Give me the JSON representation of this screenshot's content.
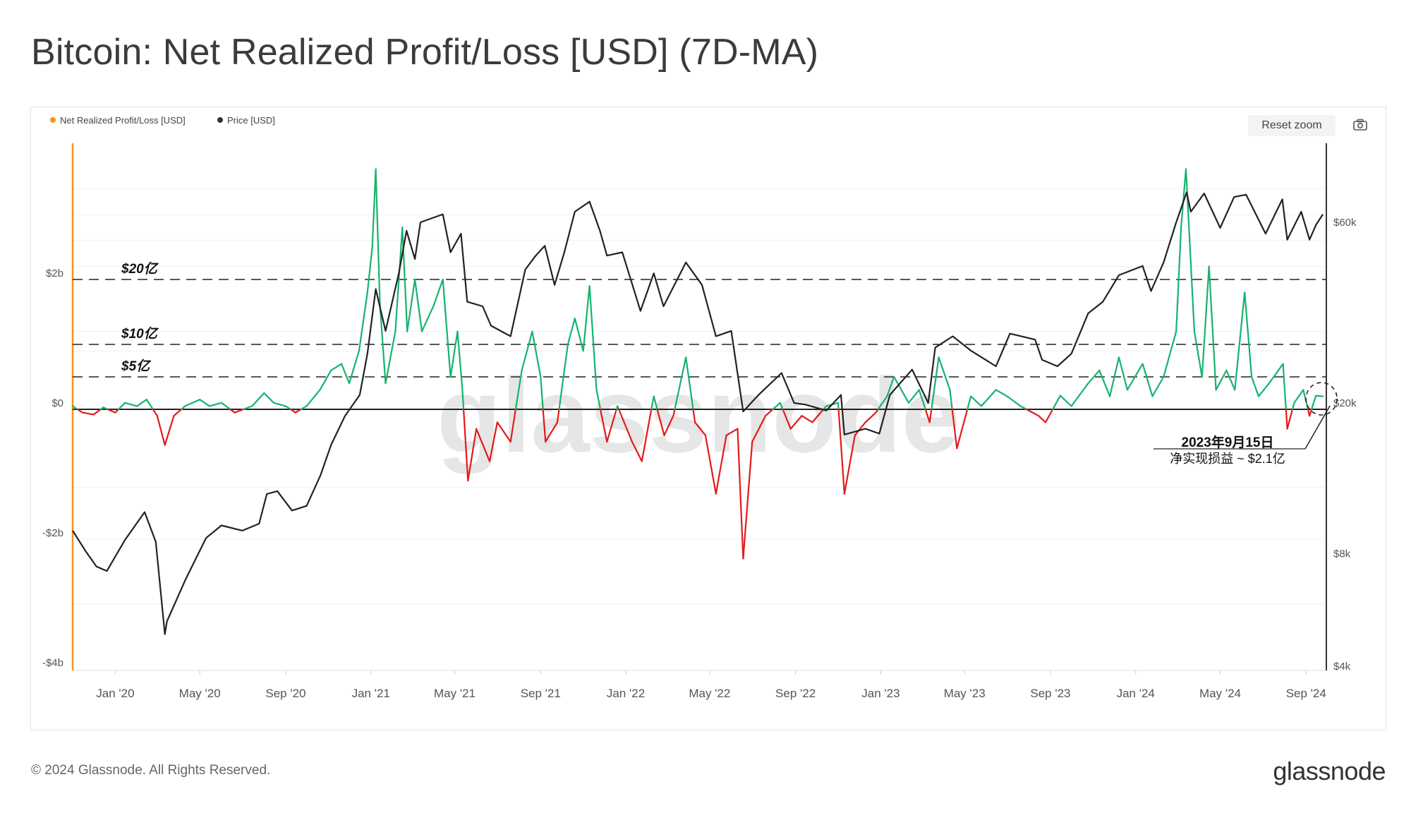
{
  "title": "Bitcoin: Net Realized Profit/Loss [USD] (7D-MA)",
  "footer": {
    "copyright": "© 2024 Glassnode. All Rights Reserved.",
    "logo": "glassnode"
  },
  "controls": {
    "reset_zoom": "Reset zoom",
    "camera_icon": "camera-icon"
  },
  "watermark": "glassnode",
  "legend": [
    {
      "label": "Net Realized Profit/Loss [USD]",
      "color": "#f7931a"
    },
    {
      "label": "Price [USD]",
      "color": "#333333"
    }
  ],
  "colors": {
    "profit": "#16b36f",
    "loss": "#e3191b",
    "price": "#222222",
    "left_axis": "#f7931a"
  },
  "annotations": {
    "lines": [
      {
        "label": "$20亿",
        "value": 2.0
      },
      {
        "label": "$10亿",
        "value": 1.0
      },
      {
        "label": "$5亿",
        "value": 0.5
      }
    ],
    "callout_date": "2023年9月15日",
    "callout_text": "净实现损益 ~ $2.1亿"
  },
  "chart_data": {
    "type": "line",
    "x_tick_labels": [
      "Jan '20",
      "May '20",
      "Sep '20",
      "Jan '21",
      "May '21",
      "Sep '21",
      "Jan '22",
      "May '22",
      "Sep '22",
      "Jan '23",
      "May '23",
      "Sep '23",
      "Jan '24",
      "May '24",
      "Sep '24"
    ],
    "x_range": [
      "2019-11-01",
      "2024-09-30"
    ],
    "y_left": {
      "label": "Net Realized Profit/Loss [USD]",
      "ticks": [
        "$2b",
        "$0",
        "-$2b",
        "-$4b"
      ],
      "tick_values": [
        2,
        0,
        -2,
        -4
      ],
      "range": [
        -4,
        3.2
      ],
      "unit": "billion USD"
    },
    "y_right": {
      "label": "Price [USD]",
      "scale": "log",
      "ticks": [
        "$60k",
        "$20k",
        "$8k",
        "$4k"
      ],
      "tick_values": [
        60000,
        20000,
        8000,
        4000
      ],
      "range": [
        4000,
        110000
      ]
    },
    "grid": true,
    "series": [
      {
        "name": "Net Realized Profit/Loss [USD]",
        "axis": "left",
        "unit": "billion USD",
        "points": [
          [
            "2019-11-01",
            0.05
          ],
          [
            "2019-11-15",
            -0.05
          ],
          [
            "2019-12-01",
            -0.08
          ],
          [
            "2019-12-15",
            0.03
          ],
          [
            "2020-01-01",
            -0.05
          ],
          [
            "2020-01-15",
            0.1
          ],
          [
            "2020-02-01",
            0.05
          ],
          [
            "2020-02-15",
            0.15
          ],
          [
            "2020-03-01",
            -0.1
          ],
          [
            "2020-03-12",
            -0.55
          ],
          [
            "2020-03-25",
            -0.1
          ],
          [
            "2020-04-10",
            0.05
          ],
          [
            "2020-05-01",
            0.15
          ],
          [
            "2020-05-15",
            0.05
          ],
          [
            "2020-06-01",
            0.1
          ],
          [
            "2020-06-20",
            -0.05
          ],
          [
            "2020-07-15",
            0.05
          ],
          [
            "2020-08-01",
            0.25
          ],
          [
            "2020-08-15",
            0.1
          ],
          [
            "2020-09-01",
            0.05
          ],
          [
            "2020-09-15",
            -0.05
          ],
          [
            "2020-10-01",
            0.05
          ],
          [
            "2020-10-20",
            0.3
          ],
          [
            "2020-11-05",
            0.6
          ],
          [
            "2020-11-20",
            0.7
          ],
          [
            "2020-12-01",
            0.4
          ],
          [
            "2020-12-15",
            0.9
          ],
          [
            "2020-12-27",
            1.8
          ],
          [
            "2021-01-03",
            2.5
          ],
          [
            "2021-01-08",
            3.7
          ],
          [
            "2021-01-14",
            1.6
          ],
          [
            "2021-01-22",
            0.4
          ],
          [
            "2021-02-05",
            1.2
          ],
          [
            "2021-02-15",
            2.8
          ],
          [
            "2021-02-22",
            1.2
          ],
          [
            "2021-03-05",
            2.0
          ],
          [
            "2021-03-15",
            1.2
          ],
          [
            "2021-04-01",
            1.6
          ],
          [
            "2021-04-14",
            2.0
          ],
          [
            "2021-04-25",
            0.5
          ],
          [
            "2021-05-05",
            1.2
          ],
          [
            "2021-05-12",
            0.3
          ],
          [
            "2021-05-20",
            -1.1
          ],
          [
            "2021-06-01",
            -0.3
          ],
          [
            "2021-06-20",
            -0.8
          ],
          [
            "2021-07-01",
            -0.2
          ],
          [
            "2021-07-20",
            -0.5
          ],
          [
            "2021-08-05",
            0.6
          ],
          [
            "2021-08-20",
            1.2
          ],
          [
            "2021-09-01",
            0.5
          ],
          [
            "2021-09-08",
            -0.5
          ],
          [
            "2021-09-25",
            -0.2
          ],
          [
            "2021-10-10",
            1.0
          ],
          [
            "2021-10-20",
            1.4
          ],
          [
            "2021-11-01",
            0.9
          ],
          [
            "2021-11-10",
            1.9
          ],
          [
            "2021-11-20",
            0.3
          ],
          [
            "2021-12-05",
            -0.5
          ],
          [
            "2021-12-20",
            0.05
          ],
          [
            "2022-01-10",
            -0.5
          ],
          [
            "2022-01-24",
            -0.8
          ],
          [
            "2022-02-10",
            0.2
          ],
          [
            "2022-02-25",
            -0.4
          ],
          [
            "2022-03-10",
            -0.1
          ],
          [
            "2022-03-28",
            0.8
          ],
          [
            "2022-04-10",
            -0.2
          ],
          [
            "2022-04-25",
            -0.4
          ],
          [
            "2022-05-10",
            -1.3
          ],
          [
            "2022-05-25",
            -0.4
          ],
          [
            "2022-06-10",
            -0.3
          ],
          [
            "2022-06-18",
            -2.3
          ],
          [
            "2022-07-01",
            -0.5
          ],
          [
            "2022-07-20",
            -0.1
          ],
          [
            "2022-08-10",
            0.1
          ],
          [
            "2022-08-25",
            -0.3
          ],
          [
            "2022-09-10",
            -0.1
          ],
          [
            "2022-09-25",
            -0.2
          ],
          [
            "2022-10-15",
            0.05
          ],
          [
            "2022-11-01",
            0.1
          ],
          [
            "2022-11-10",
            -1.3
          ],
          [
            "2022-11-25",
            -0.4
          ],
          [
            "2022-12-10",
            -0.2
          ],
          [
            "2022-12-25",
            -0.05
          ],
          [
            "2023-01-10",
            0.2
          ],
          [
            "2023-01-20",
            0.5
          ],
          [
            "2023-02-10",
            0.1
          ],
          [
            "2023-02-25",
            0.3
          ],
          [
            "2023-03-12",
            -0.2
          ],
          [
            "2023-03-25",
            0.8
          ],
          [
            "2023-04-10",
            0.3
          ],
          [
            "2023-04-20",
            -0.6
          ],
          [
            "2023-05-10",
            0.2
          ],
          [
            "2023-05-25",
            0.05
          ],
          [
            "2023-06-15",
            0.3
          ],
          [
            "2023-07-01",
            0.2
          ],
          [
            "2023-07-20",
            0.05
          ],
          [
            "2023-08-15",
            -0.1
          ],
          [
            "2023-08-25",
            -0.2
          ],
          [
            "2023-09-15",
            0.21
          ],
          [
            "2023-10-01",
            0.05
          ],
          [
            "2023-10-25",
            0.4
          ],
          [
            "2023-11-10",
            0.6
          ],
          [
            "2023-11-25",
            0.2
          ],
          [
            "2023-12-08",
            0.8
          ],
          [
            "2023-12-20",
            0.3
          ],
          [
            "2024-01-11",
            0.7
          ],
          [
            "2024-01-25",
            0.2
          ],
          [
            "2024-02-10",
            0.5
          ],
          [
            "2024-02-28",
            1.2
          ],
          [
            "2024-03-06",
            2.8
          ],
          [
            "2024-03-13",
            3.7
          ],
          [
            "2024-03-25",
            1.2
          ],
          [
            "2024-04-05",
            0.5
          ],
          [
            "2024-04-15",
            2.2
          ],
          [
            "2024-04-25",
            0.3
          ],
          [
            "2024-05-10",
            0.6
          ],
          [
            "2024-05-22",
            0.3
          ],
          [
            "2024-06-05",
            1.8
          ],
          [
            "2024-06-15",
            0.5
          ],
          [
            "2024-06-25",
            0.2
          ],
          [
            "2024-07-10",
            0.4
          ],
          [
            "2024-07-30",
            0.7
          ],
          [
            "2024-08-05",
            -0.3
          ],
          [
            "2024-08-15",
            0.1
          ],
          [
            "2024-08-28",
            0.3
          ],
          [
            "2024-09-06",
            -0.1
          ],
          [
            "2024-09-15",
            0.21
          ],
          [
            "2024-09-25",
            0.2
          ]
        ]
      },
      {
        "name": "Price [USD]",
        "axis": "right",
        "unit": "USD",
        "points": [
          [
            "2019-11-01",
            9200
          ],
          [
            "2019-11-20",
            8100
          ],
          [
            "2019-12-05",
            7400
          ],
          [
            "2019-12-20",
            7200
          ],
          [
            "2020-01-15",
            8700
          ],
          [
            "2020-02-12",
            10300
          ],
          [
            "2020-02-28",
            8600
          ],
          [
            "2020-03-12",
            4900
          ],
          [
            "2020-03-15",
            5300
          ],
          [
            "2020-04-10",
            6800
          ],
          [
            "2020-05-10",
            8800
          ],
          [
            "2020-06-01",
            9500
          ],
          [
            "2020-07-01",
            9200
          ],
          [
            "2020-07-25",
            9600
          ],
          [
            "2020-08-05",
            11500
          ],
          [
            "2020-08-20",
            11700
          ],
          [
            "2020-09-10",
            10400
          ],
          [
            "2020-10-01",
            10700
          ],
          [
            "2020-10-21",
            12900
          ],
          [
            "2020-11-05",
            15500
          ],
          [
            "2020-11-25",
            18500
          ],
          [
            "2020-12-16",
            21000
          ],
          [
            "2020-12-27",
            27000
          ],
          [
            "2021-01-08",
            40000
          ],
          [
            "2021-01-22",
            31000
          ],
          [
            "2021-02-10",
            44000
          ],
          [
            "2021-02-21",
            57000
          ],
          [
            "2021-03-05",
            48000
          ],
          [
            "2021-03-13",
            60000
          ],
          [
            "2021-04-14",
            63000
          ],
          [
            "2021-04-25",
            50000
          ],
          [
            "2021-05-10",
            56000
          ],
          [
            "2021-05-19",
            37000
          ],
          [
            "2021-06-10",
            36000
          ],
          [
            "2021-06-22",
            32000
          ],
          [
            "2021-07-20",
            30000
          ],
          [
            "2021-08-10",
            45000
          ],
          [
            "2021-08-25",
            49000
          ],
          [
            "2021-09-07",
            52000
          ],
          [
            "2021-09-21",
            41000
          ],
          [
            "2021-10-05",
            50000
          ],
          [
            "2021-10-20",
            64000
          ],
          [
            "2021-11-10",
            68000
          ],
          [
            "2021-11-25",
            57000
          ],
          [
            "2021-12-05",
            49000
          ],
          [
            "2021-12-27",
            50000
          ],
          [
            "2022-01-22",
            35000
          ],
          [
            "2022-02-10",
            44000
          ],
          [
            "2022-02-24",
            36000
          ],
          [
            "2022-03-28",
            47000
          ],
          [
            "2022-04-20",
            41000
          ],
          [
            "2022-05-10",
            30000
          ],
          [
            "2022-06-01",
            31000
          ],
          [
            "2022-06-18",
            19000
          ],
          [
            "2022-07-10",
            21000
          ],
          [
            "2022-08-12",
            24000
          ],
          [
            "2022-08-30",
            20000
          ],
          [
            "2022-09-15",
            19800
          ],
          [
            "2022-10-15",
            19100
          ],
          [
            "2022-11-05",
            21000
          ],
          [
            "2022-11-10",
            16500
          ],
          [
            "2022-12-10",
            17100
          ],
          [
            "2022-12-30",
            16600
          ],
          [
            "2023-01-14",
            21000
          ],
          [
            "2023-02-15",
            24500
          ],
          [
            "2023-03-10",
            20000
          ],
          [
            "2023-03-20",
            28000
          ],
          [
            "2023-04-14",
            30000
          ],
          [
            "2023-05-10",
            27500
          ],
          [
            "2023-06-15",
            25000
          ],
          [
            "2023-07-05",
            30500
          ],
          [
            "2023-08-10",
            29400
          ],
          [
            "2023-08-20",
            26000
          ],
          [
            "2023-09-11",
            25000
          ],
          [
            "2023-10-01",
            27000
          ],
          [
            "2023-10-25",
            34500
          ],
          [
            "2023-11-15",
            37000
          ],
          [
            "2023-12-08",
            43500
          ],
          [
            "2024-01-11",
            46000
          ],
          [
            "2024-01-23",
            39500
          ],
          [
            "2024-02-10",
            47000
          ],
          [
            "2024-02-28",
            60000
          ],
          [
            "2024-03-14",
            72000
          ],
          [
            "2024-03-20",
            64000
          ],
          [
            "2024-04-08",
            71500
          ],
          [
            "2024-05-01",
            58000
          ],
          [
            "2024-05-21",
            70000
          ],
          [
            "2024-06-07",
            71000
          ],
          [
            "2024-07-05",
            56000
          ],
          [
            "2024-07-29",
            69000
          ],
          [
            "2024-08-05",
            54000
          ],
          [
            "2024-08-25",
            64000
          ],
          [
            "2024-09-06",
            54000
          ],
          [
            "2024-09-15",
            59000
          ],
          [
            "2024-09-25",
            63000
          ]
        ]
      }
    ],
    "note": "Net Realized Profit/Loss line colored green above $0 and red below $0"
  }
}
